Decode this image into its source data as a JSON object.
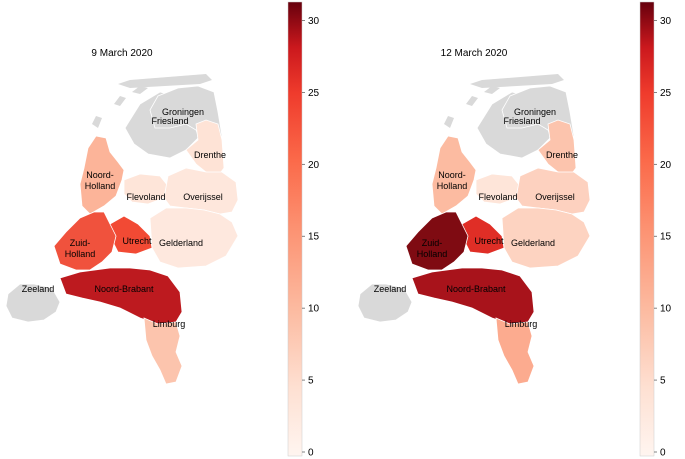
{
  "maps": [
    {
      "title": "9 March 2020",
      "colorbar": {
        "min": 0,
        "max": 31,
        "ticks": [
          "0",
          "5",
          "10",
          "15",
          "20",
          "25",
          "30"
        ]
      },
      "provinces": {
        "groningen": {
          "name": "Groningen",
          "color": "#d9d9d9"
        },
        "friesland": {
          "name": "Friesland",
          "color": "#d9d9d9"
        },
        "drenthe": {
          "name": "Drenthe",
          "color": "#fee3d6"
        },
        "noord_holland": {
          "name": "Noord-\nHolland",
          "color": "#fcb499"
        },
        "flevoland": {
          "name": "Flevoland",
          "color": "#fee5d9"
        },
        "overijssel": {
          "name": "Overijssel",
          "color": "#fee7dc"
        },
        "zuid_holland": {
          "name": "Zuid-\nHolland",
          "color": "#f0523d"
        },
        "utrecht": {
          "name": "Utrecht",
          "color": "#f24a34"
        },
        "gelderland": {
          "name": "Gelderland",
          "color": "#fee8de"
        },
        "zeeland": {
          "name": "Zeeland",
          "color": "#d9d9d9"
        },
        "noord_brabant": {
          "name": "Noord-Brabant",
          "color": "#bd1a1f"
        },
        "limburg": {
          "name": "Limburg",
          "color": "#fcc4ad"
        }
      }
    },
    {
      "title": "12 March 2020",
      "colorbar": {
        "min": 0,
        "max": 31,
        "ticks": [
          "0",
          "5",
          "10",
          "15",
          "20",
          "25",
          "30"
        ]
      },
      "provinces": {
        "groningen": {
          "name": "Groningen",
          "color": "#d9d9d9"
        },
        "friesland": {
          "name": "Friesland",
          "color": "#d9d9d9"
        },
        "drenthe": {
          "name": "Drenthe",
          "color": "#fcc4ad"
        },
        "noord_holland": {
          "name": "Noord-\nHolland",
          "color": "#fcbba1"
        },
        "flevoland": {
          "name": "Flevoland",
          "color": "#fee5d9"
        },
        "overijssel": {
          "name": "Overijssel",
          "color": "#fdd1bf"
        },
        "zuid_holland": {
          "name": "Zuid-\nHolland",
          "color": "#7f0b12"
        },
        "utrecht": {
          "name": "Utrecht",
          "color": "#e02e26"
        },
        "gelderland": {
          "name": "Gelderland",
          "color": "#fdd3c1"
        },
        "zeeland": {
          "name": "Zeeland",
          "color": "#d9d9d9"
        },
        "noord_brabant": {
          "name": "Noord-Brabant",
          "color": "#a8131b"
        },
        "limburg": {
          "name": "Limburg",
          "color": "#fcab8f"
        }
      }
    }
  ]
}
